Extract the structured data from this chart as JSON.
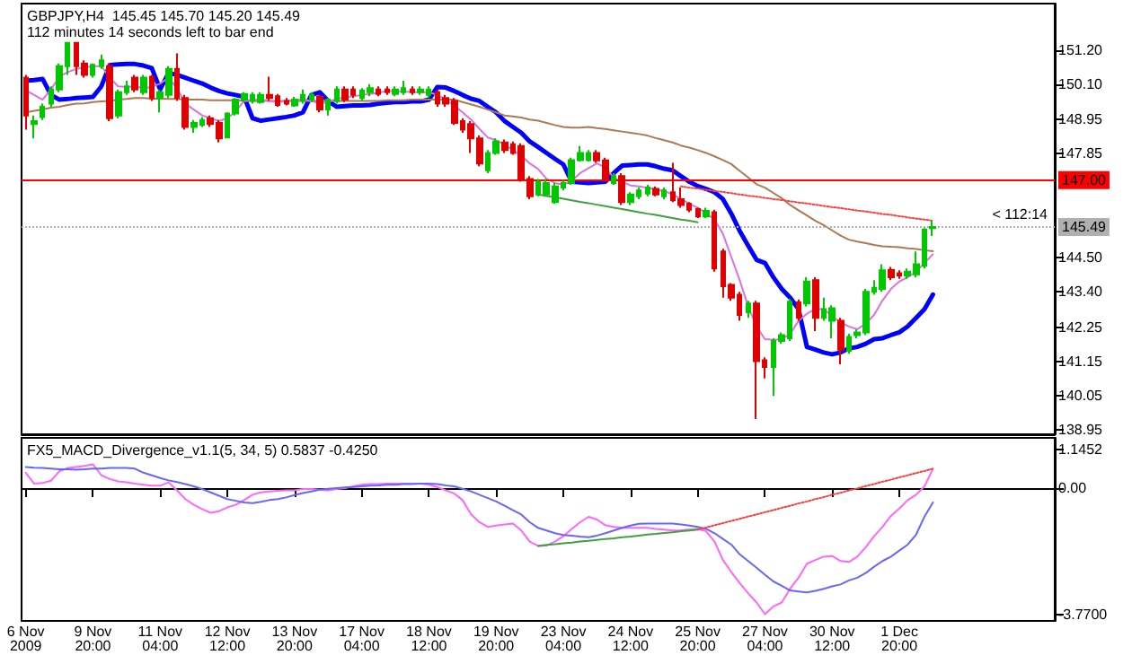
{
  "chart_data": [
    {
      "type": "candlestick",
      "title": "GBPJPY,H4  145.45 145.70 145.20 145.49",
      "subtitle": "112 minutes 14 seconds left to bar end",
      "categories": [
        null,
        null,
        null,
        null,
        null,
        null,
        null,
        null,
        null,
        null,
        null,
        null,
        null,
        null,
        null,
        null,
        null,
        null,
        null,
        null,
        null,
        null,
        null,
        null,
        null,
        null,
        null,
        null,
        null,
        null,
        null,
        null,
        null,
        null,
        null,
        null,
        null,
        null,
        null,
        null,
        null,
        null,
        null,
        null,
        null,
        null,
        null,
        null,
        null,
        null,
        null,
        null,
        null,
        null,
        null,
        null,
        null,
        null,
        null,
        null,
        null,
        null,
        null,
        null,
        null,
        null,
        null,
        null,
        null,
        null,
        null,
        null,
        null,
        null,
        null,
        null,
        null,
        null,
        null,
        null,
        null,
        null,
        null,
        null,
        null,
        null,
        null,
        null,
        null,
        null,
        null,
        null,
        null,
        null,
        null,
        null,
        null,
        null,
        null,
        null,
        null,
        null,
        null,
        null,
        null,
        null,
        null,
        null,
        null
      ],
      "ohlc": [
        [
          150.31,
          150.4,
          148.63,
          149.09
        ],
        [
          148.81,
          149.09,
          148.35,
          148.91
        ],
        [
          149.04,
          149.47,
          148.94,
          149.37
        ],
        [
          149.47,
          150.03,
          149.37,
          149.93
        ],
        [
          149.93,
          150.77,
          149.84,
          150.68
        ],
        [
          150.68,
          151.43,
          150.4,
          151.43
        ],
        [
          151.43,
          151.43,
          150.4,
          150.68
        ],
        [
          150.77,
          150.87,
          150.31,
          150.4
        ],
        [
          150.4,
          150.77,
          150.31,
          150.72
        ],
        [
          150.68,
          151.05,
          150.59,
          150.87
        ],
        [
          150.68,
          150.77,
          148.91,
          149.0
        ],
        [
          149.09,
          149.93,
          149.0,
          149.84
        ],
        [
          149.84,
          150.21,
          149.75,
          150.03
        ],
        [
          150.31,
          150.4,
          149.84,
          149.93
        ],
        [
          149.84,
          150.4,
          149.75,
          150.31
        ],
        [
          150.34,
          150.4,
          149.56,
          149.65
        ],
        [
          149.65,
          149.93,
          149.19,
          149.84
        ],
        [
          149.75,
          150.68,
          149.65,
          150.59
        ],
        [
          150.59,
          151.09,
          149.56,
          149.65
        ],
        [
          149.65,
          149.75,
          148.63,
          148.72
        ],
        [
          148.72,
          148.94,
          148.53,
          148.85
        ],
        [
          148.78,
          149.04,
          148.72,
          148.94
        ],
        [
          149.0,
          149.09,
          148.72,
          148.81
        ],
        [
          148.85,
          148.94,
          148.22,
          148.35
        ],
        [
          148.38,
          149.19,
          148.35,
          149.15
        ],
        [
          149.15,
          149.65,
          149.09,
          149.6
        ],
        [
          149.6,
          149.84,
          149.52,
          149.78
        ],
        [
          149.56,
          149.84,
          149.47,
          149.75
        ],
        [
          149.52,
          149.84,
          149.47,
          149.75
        ],
        [
          149.75,
          150.34,
          149.56,
          149.65
        ],
        [
          149.71,
          149.78,
          149.37,
          149.43
        ],
        [
          149.56,
          149.65,
          149.41,
          149.47
        ],
        [
          149.41,
          149.69,
          149.37,
          149.6
        ],
        [
          149.56,
          149.93,
          149.47,
          149.75
        ],
        [
          149.6,
          149.84,
          149.52,
          149.75
        ],
        [
          149.69,
          149.78,
          149.19,
          149.28
        ],
        [
          149.28,
          149.65,
          149.09,
          149.6
        ],
        [
          149.56,
          150.03,
          149.47,
          149.93
        ],
        [
          149.93,
          150.03,
          149.52,
          149.6
        ],
        [
          149.93,
          150.03,
          149.65,
          149.75
        ],
        [
          149.65,
          149.97,
          149.56,
          149.9
        ],
        [
          149.84,
          150.1,
          149.71,
          149.97
        ],
        [
          149.93,
          150.03,
          149.71,
          149.78
        ],
        [
          149.93,
          150.03,
          149.75,
          149.84
        ],
        [
          149.78,
          150.03,
          149.71,
          149.93
        ],
        [
          149.84,
          150.21,
          149.75,
          149.97
        ],
        [
          149.93,
          150.03,
          149.75,
          149.84
        ],
        [
          149.84,
          150.03,
          149.75,
          149.93
        ],
        [
          149.75,
          150.03,
          149.65,
          149.93
        ],
        [
          149.84,
          149.93,
          149.37,
          149.47
        ],
        [
          149.65,
          149.75,
          149.37,
          149.47
        ],
        [
          149.56,
          149.65,
          148.78,
          148.85
        ],
        [
          148.91,
          149.0,
          148.53,
          148.63
        ],
        [
          148.81,
          148.91,
          147.88,
          148.35
        ],
        [
          148.35,
          148.44,
          147.45,
          147.54
        ],
        [
          147.32,
          147.97,
          147.23,
          147.88
        ],
        [
          147.88,
          148.35,
          147.82,
          148.25
        ],
        [
          148.22,
          148.31,
          147.88,
          147.97
        ],
        [
          148.16,
          148.25,
          147.82,
          147.88
        ],
        [
          148.1,
          148.19,
          146.95,
          147.04
        ],
        [
          147.04,
          147.13,
          146.39,
          146.48
        ],
        [
          146.54,
          147.04,
          146.48,
          146.95
        ],
        [
          146.54,
          147.04,
          146.48,
          146.91
        ],
        [
          146.29,
          146.91,
          146.24,
          146.8
        ],
        [
          146.76,
          147.0,
          146.67,
          146.91
        ],
        [
          146.91,
          147.73,
          146.85,
          147.65
        ],
        [
          147.65,
          148.1,
          147.6,
          147.88
        ],
        [
          147.65,
          147.97,
          147.6,
          147.88
        ],
        [
          147.88,
          147.97,
          147.56,
          147.64
        ],
        [
          147.64,
          147.73,
          146.95,
          147.04
        ],
        [
          146.91,
          147.23,
          146.85,
          147.13
        ],
        [
          147.13,
          147.23,
          146.2,
          146.29
        ],
        [
          146.29,
          146.61,
          146.2,
          146.54
        ],
        [
          146.48,
          146.76,
          146.39,
          146.67
        ],
        [
          146.57,
          146.85,
          146.48,
          146.76
        ],
        [
          146.72,
          146.8,
          146.48,
          146.54
        ],
        [
          146.48,
          146.76,
          146.39,
          146.67
        ],
        [
          146.61,
          147.56,
          146.29,
          146.35
        ],
        [
          146.39,
          146.76,
          146.11,
          146.2
        ],
        [
          146.24,
          146.29,
          145.97,
          146.05
        ],
        [
          146.07,
          146.11,
          145.78,
          145.83
        ],
        [
          145.83,
          146.11,
          145.78,
          146.01
        ],
        [
          145.97,
          146.05,
          144.05,
          144.15
        ],
        [
          144.7,
          144.79,
          143.21,
          143.58
        ],
        [
          143.62,
          143.68,
          143.11,
          143.21
        ],
        [
          143.3,
          143.4,
          142.46,
          142.65
        ],
        [
          142.74,
          143.11,
          142.56,
          143.02
        ],
        [
          143.02,
          143.11,
          139.29,
          141.16
        ],
        [
          141.19,
          141.28,
          140.6,
          140.97
        ],
        [
          140.97,
          141.9,
          140.04,
          141.81
        ],
        [
          141.81,
          142.09,
          141.72,
          142.0
        ],
        [
          141.9,
          143.17,
          141.81,
          143.08
        ],
        [
          143.06,
          143.15,
          142.46,
          142.56
        ],
        [
          143.02,
          143.87,
          142.93,
          143.73
        ],
        [
          143.77,
          143.87,
          142.13,
          142.56
        ],
        [
          142.56,
          143.21,
          142.46,
          142.84
        ],
        [
          142.46,
          142.96,
          141.9,
          142.87
        ],
        [
          142.46,
          142.56,
          141.06,
          141.53
        ],
        [
          141.49,
          142.04,
          141.4,
          141.94
        ],
        [
          142.0,
          142.18,
          141.9,
          142.09
        ],
        [
          142.09,
          143.49,
          142.0,
          143.4
        ],
        [
          143.4,
          143.77,
          143.3,
          143.53
        ],
        [
          143.49,
          144.29,
          143.4,
          144.09
        ],
        [
          144.11,
          144.2,
          143.77,
          143.87
        ],
        [
          144.0,
          144.09,
          143.82,
          143.92
        ],
        [
          143.92,
          144.15,
          143.82,
          144.05
        ],
        [
          143.96,
          144.7,
          143.87,
          144.29
        ],
        [
          144.24,
          145.45,
          144.15,
          145.41
        ],
        [
          145.45,
          145.7,
          145.2,
          145.49
        ]
      ],
      "colors": [
        "#e00000",
        "#00c800",
        "#00c800",
        "#00c800",
        "#00c800",
        "#00c800",
        "#e00000",
        "#e00000",
        "#00c800",
        "#00c800",
        "#e00000",
        "#00c800",
        "#00c800",
        "#e00000",
        "#00c800",
        "#e00000",
        "#00c800",
        "#00c800",
        "#e00000",
        "#e00000",
        "#00c800",
        "#00c800",
        "#e00000",
        "#e00000",
        "#00c800",
        "#00c800",
        "#00c800",
        "#00c800",
        "#00c800",
        "#e00000",
        "#e00000",
        "#e00000",
        "#00c800",
        "#00c800",
        "#00c800",
        "#e00000",
        "#00c800",
        "#00c800",
        "#e00000",
        "#e00000",
        "#00c800",
        "#00c800",
        "#e00000",
        "#e00000",
        "#00c800",
        "#00c800",
        "#e00000",
        "#00c800",
        "#00c800",
        "#e00000",
        "#e00000",
        "#e00000",
        "#e00000",
        "#e00000",
        "#e00000",
        "#00c800",
        "#00c800",
        "#e00000",
        "#e00000",
        "#e00000",
        "#e00000",
        "#00c800",
        "#00c800",
        "#00c800",
        "#00c800",
        "#00c800",
        "#00c800",
        "#00c800",
        "#e00000",
        "#e00000",
        "#00c800",
        "#e00000",
        "#00c800",
        "#00c800",
        "#00c800",
        "#e00000",
        "#00c800",
        "#e00000",
        "#e00000",
        "#e00000",
        "#e00000",
        "#00c800",
        "#e00000",
        "#e00000",
        "#e00000",
        "#e00000",
        "#00c800",
        "#e00000",
        "#e00000",
        "#00c800",
        "#00c800",
        "#00c800",
        "#e00000",
        "#00c800",
        "#e00000",
        "#00c800",
        "#00c800",
        "#e00000",
        "#00c800",
        "#00c800",
        "#00c800",
        "#00c800",
        "#00c800",
        "#e00000",
        "#e00000",
        "#00c800",
        "#00c800",
        "#00c800",
        "#00c800"
      ],
      "series": [
        {
          "type": "line",
          "color": "#0000ff",
          "values": [
            150.21,
            150.23,
            150.27,
            149.75,
            149.6,
            149.62,
            149.65,
            149.67,
            149.69,
            150.03,
            150.72,
            150.74,
            150.75,
            150.75,
            150.7,
            150.62,
            149.93,
            150.46,
            150.4,
            150.31,
            150.21,
            150.12,
            149.99,
            149.88,
            149.8,
            149.75,
            149.69,
            149.0,
            148.92,
            148.96,
            149.0,
            149.04,
            149.09,
            149.19,
            149.75,
            149.84,
            149.56,
            149.37,
            149.39,
            149.41,
            149.41,
            149.43,
            149.47,
            149.5,
            149.52,
            149.52,
            149.54,
            149.54,
            149.6,
            150.01,
            149.99,
            149.88,
            149.75,
            149.63,
            149.56,
            149.37,
            149.19,
            148.91,
            148.72,
            148.53,
            148.25,
            148.07,
            147.88,
            147.69,
            147.51,
            146.95,
            146.93,
            146.91,
            146.93,
            146.95,
            147.23,
            147.47,
            147.49,
            147.51,
            147.51,
            147.45,
            147.37,
            147.32,
            147.13,
            146.95,
            146.81,
            146.72,
            146.61,
            146.39,
            145.92,
            145.36,
            144.89,
            144.43,
            144.33,
            143.87,
            143.49,
            143.21,
            142.84,
            141.62,
            141.53,
            141.44,
            141.38,
            141.44,
            141.57,
            141.62,
            141.72,
            141.87,
            141.9,
            142.0,
            142.09,
            142.28,
            142.56,
            142.84,
            143.31
          ]
        },
        {
          "type": "line",
          "color": "#b07850",
          "values": [
            149.19,
            149.24,
            149.28,
            149.34,
            149.37,
            149.43,
            149.47,
            149.48,
            149.52,
            149.54,
            149.56,
            149.6,
            149.62,
            149.65,
            149.65,
            149.63,
            149.63,
            149.62,
            149.62,
            149.6,
            149.6,
            149.6,
            149.58,
            149.58,
            149.58,
            149.58,
            149.56,
            149.56,
            149.56,
            149.56,
            149.56,
            149.56,
            149.56,
            149.56,
            149.56,
            149.56,
            149.56,
            149.56,
            149.56,
            149.56,
            149.56,
            149.56,
            149.56,
            149.58,
            149.58,
            149.58,
            149.6,
            149.6,
            149.6,
            149.6,
            149.6,
            149.6,
            149.52,
            149.45,
            149.37,
            149.28,
            149.19,
            149.09,
            149.06,
            149.02,
            148.96,
            148.92,
            148.85,
            148.78,
            148.72,
            148.7,
            148.7,
            148.72,
            148.68,
            148.65,
            148.61,
            148.57,
            148.53,
            148.49,
            148.44,
            148.36,
            148.29,
            148.22,
            148.12,
            148.05,
            147.97,
            147.88,
            147.77,
            147.65,
            147.52,
            147.3,
            147.09,
            146.87,
            146.76,
            146.59,
            146.42,
            146.2,
            146.03,
            145.86,
            145.69,
            145.55,
            145.38,
            145.21,
            145.08,
            145.02,
            144.97,
            144.91,
            144.87,
            144.85,
            144.84,
            144.8,
            144.78,
            144.74,
            144.71
          ]
        },
        {
          "type": "line",
          "color": "#e070e0",
          "values": [
            149.9,
            149.75,
            149.6,
            149.93,
            150.34,
            150.49,
            150.59,
            150.64,
            150.68,
            150.68,
            150.31,
            150.03,
            150.01,
            150.03,
            149.97,
            150.01,
            150.12,
            150.31,
            149.97,
            149.47,
            149.28,
            149.09,
            149.0,
            148.91,
            149.0,
            149.22,
            149.56,
            149.6,
            149.6,
            149.56,
            149.52,
            149.56,
            149.58,
            149.6,
            149.56,
            149.48,
            149.52,
            149.63,
            149.67,
            149.71,
            149.75,
            149.78,
            149.82,
            149.88,
            149.88,
            149.86,
            149.84,
            149.84,
            149.84,
            149.75,
            149.6,
            149.41,
            149.19,
            148.96,
            148.66,
            148.38,
            148.29,
            148.16,
            147.97,
            147.79,
            147.54,
            147.36,
            147.04,
            146.91,
            146.85,
            146.98,
            147.23,
            147.39,
            147.54,
            147.41,
            147.08,
            146.95,
            146.83,
            146.8,
            146.76,
            146.7,
            146.65,
            146.54,
            146.39,
            146.24,
            146.11,
            145.94,
            145.73,
            145.27,
            144.52,
            143.77,
            142.93,
            142.28,
            141.87,
            141.85,
            141.87,
            142.04,
            142.46,
            142.69,
            142.84,
            142.84,
            142.61,
            142.41,
            142.28,
            142.19,
            142.37,
            142.65,
            143.12,
            143.49,
            143.73,
            143.87,
            144.05,
            144.33,
            144.61
          ]
        },
        {
          "type": "line",
          "color": "#40a040",
          "values": [
            null,
            null,
            null,
            null,
            null,
            null,
            null,
            null,
            null,
            null,
            null,
            null,
            null,
            null,
            null,
            null,
            null,
            null,
            null,
            null,
            null,
            null,
            null,
            null,
            null,
            null,
            null,
            null,
            null,
            null,
            null,
            null,
            null,
            null,
            null,
            null,
            null,
            null,
            null,
            null,
            null,
            null,
            null,
            null,
            null,
            null,
            null,
            null,
            null,
            null,
            null,
            null,
            null,
            null,
            null,
            null,
            null,
            null,
            null,
            null,
            null,
            146.54,
            146.49,
            146.45,
            146.4,
            146.35,
            146.3,
            146.26,
            146.21,
            146.16,
            146.11,
            146.07,
            146.02,
            145.97,
            145.92,
            145.88,
            145.83,
            145.78,
            145.73,
            145.69,
            145.64,
            null,
            null,
            null,
            null,
            null,
            null,
            null,
            null,
            null,
            null,
            null,
            null,
            null,
            null,
            null,
            null,
            null,
            null,
            null,
            null,
            null,
            null,
            null,
            null,
            null,
            null,
            null,
            null
          ]
        },
        {
          "type": "line",
          "color": "#ff4040",
          "line_style": "dotted",
          "values": [
            null,
            null,
            null,
            null,
            null,
            null,
            null,
            null,
            null,
            null,
            null,
            null,
            null,
            null,
            null,
            null,
            null,
            null,
            null,
            null,
            null,
            null,
            null,
            null,
            null,
            null,
            null,
            null,
            null,
            null,
            null,
            null,
            null,
            null,
            null,
            null,
            null,
            null,
            null,
            null,
            null,
            null,
            null,
            null,
            null,
            null,
            null,
            null,
            null,
            null,
            null,
            null,
            null,
            null,
            null,
            null,
            null,
            null,
            null,
            null,
            null,
            null,
            null,
            null,
            null,
            null,
            null,
            null,
            null,
            null,
            null,
            null,
            null,
            null,
            null,
            null,
            null,
            null,
            146.8,
            146.76,
            146.73,
            146.69,
            146.65,
            146.62,
            146.58,
            146.54,
            146.5,
            146.47,
            146.43,
            146.39,
            146.36,
            146.32,
            146.28,
            146.25,
            146.21,
            146.17,
            146.13,
            146.1,
            146.06,
            146.02,
            145.99,
            145.95,
            145.91,
            145.88,
            145.84,
            145.8,
            145.76,
            145.73,
            145.69
          ]
        }
      ],
      "marker": "none",
      "ylim": [
        138.8,
        152.7
      ],
      "yticks": [
        {
          "value": 151.2,
          "label": "151.20"
        },
        {
          "value": 150.1,
          "label": "150.10"
        },
        {
          "value": 148.95,
          "label": "148.95"
        },
        {
          "value": 147.85,
          "label": "147.85"
        },
        {
          "value": 144.5,
          "label": "144.50"
        },
        {
          "value": 143.4,
          "label": "143.40"
        },
        {
          "value": 142.25,
          "label": "142.25"
        },
        {
          "value": 141.15,
          "label": "141.15"
        },
        {
          "value": 140.05,
          "label": "140.05"
        },
        {
          "value": 138.95,
          "label": "138.95"
        }
      ],
      "ref_lines": [
        {
          "axis": "y",
          "value": 147.0,
          "label": "147.00",
          "color": "#ff0000"
        },
        {
          "axis": "y",
          "value": 145.49,
          "label": "145.49",
          "color": "#b0b0b0",
          "line_style": "dotted"
        }
      ],
      "annotations": [
        {
          "text": "< 112:14",
          "y": 145.49
        }
      ],
      "tick_labels": "y"
    },
    {
      "type": "line",
      "title": "FX5_MACD_Divergence_v1.1(5, 34, 5) 0.5837 -0.4250",
      "categories": [
        "6 Nov 2009",
        null,
        null,
        null,
        null,
        null,
        null,
        null,
        "9 Nov 20:00",
        null,
        null,
        null,
        null,
        null,
        null,
        null,
        "11 Nov 04:00",
        null,
        null,
        null,
        null,
        null,
        null,
        null,
        "12 Nov 12:00",
        null,
        null,
        null,
        null,
        null,
        null,
        null,
        "13 Nov 20:00",
        null,
        null,
        null,
        null,
        null,
        null,
        null,
        "17 Nov 04:00",
        null,
        null,
        null,
        null,
        null,
        null,
        null,
        "18 Nov 12:00",
        null,
        null,
        null,
        null,
        null,
        null,
        null,
        "19 Nov 20:00",
        null,
        null,
        null,
        null,
        null,
        null,
        null,
        "23 Nov 04:00",
        null,
        null,
        null,
        null,
        null,
        null,
        null,
        "24 Nov 12:00",
        null,
        null,
        null,
        null,
        null,
        null,
        null,
        "25 Nov 20:00",
        null,
        null,
        null,
        null,
        null,
        null,
        null,
        "27 Nov 04:00",
        null,
        null,
        null,
        null,
        null,
        null,
        null,
        "30 Nov 12:00",
        null,
        null,
        null,
        null,
        null,
        null,
        null,
        "1 Dec 20:00",
        null,
        null,
        null,
        null
      ],
      "series": [
        {
          "color": "#ff66ff",
          "values": [
            0.46,
            0.13,
            0.15,
            0.22,
            0.5,
            0.6,
            0.63,
            0.66,
            0.71,
            0.38,
            0.27,
            0.2,
            0.17,
            0.13,
            0.1,
            0.07,
            0.07,
            0.17,
            -0.07,
            -0.33,
            -0.5,
            -0.63,
            -0.74,
            -0.69,
            -0.58,
            -0.5,
            -0.36,
            -0.2,
            -0.13,
            -0.1,
            -0.08,
            -0.07,
            -0.07,
            -0.03,
            -0.03,
            -0.05,
            -0.07,
            -0.03,
            0.0,
            0.05,
            0.1,
            0.12,
            0.12,
            0.13,
            0.13,
            0.13,
            0.13,
            0.13,
            0.1,
            0.03,
            -0.07,
            -0.16,
            -0.36,
            -0.78,
            -1.02,
            -1.16,
            -1.12,
            -1.09,
            -1.06,
            -1.27,
            -1.6,
            -1.73,
            -1.72,
            -1.6,
            -1.44,
            -1.22,
            -1.02,
            -0.86,
            -0.94,
            -1.11,
            -1.16,
            -1.19,
            -1.19,
            -1.19,
            -1.19,
            -1.22,
            -1.24,
            -1.27,
            -1.26,
            -1.24,
            -1.22,
            -1.29,
            -1.6,
            -2.15,
            -2.51,
            -2.84,
            -3.14,
            -3.42,
            -3.77,
            -3.54,
            -3.42,
            -3.01,
            -2.68,
            -2.26,
            -2.15,
            -2.05,
            -2.03,
            -2.18,
            -2.21,
            -2.05,
            -1.77,
            -1.44,
            -1.16,
            -0.83,
            -0.61,
            -0.36,
            -0.2,
            0.05,
            0.58
          ]
        },
        {
          "color": "#6666ff",
          "values": [
            0.63,
            0.61,
            0.6,
            0.58,
            0.56,
            0.56,
            0.55,
            0.56,
            0.58,
            0.58,
            0.6,
            0.6,
            0.6,
            0.58,
            0.46,
            0.38,
            0.3,
            0.23,
            0.18,
            0.12,
            0.05,
            -0.03,
            -0.13,
            -0.23,
            -0.33,
            -0.38,
            -0.43,
            -0.45,
            -0.41,
            -0.36,
            -0.33,
            -0.28,
            -0.21,
            -0.15,
            -0.1,
            -0.05,
            -0.02,
            0.0,
            0.02,
            0.03,
            0.05,
            0.07,
            0.08,
            0.1,
            0.1,
            0.12,
            0.12,
            0.13,
            0.13,
            0.12,
            0.08,
            0.05,
            -0.02,
            -0.1,
            -0.2,
            -0.3,
            -0.4,
            -0.53,
            -0.66,
            -0.79,
            -1.02,
            -1.19,
            -1.27,
            -1.35,
            -1.4,
            -1.42,
            -1.45,
            -1.47,
            -1.42,
            -1.35,
            -1.27,
            -1.19,
            -1.12,
            -1.07,
            -1.06,
            -1.06,
            -1.06,
            -1.06,
            -1.09,
            -1.12,
            -1.16,
            -1.22,
            -1.35,
            -1.52,
            -1.69,
            -1.98,
            -2.18,
            -2.38,
            -2.59,
            -2.79,
            -2.92,
            -3.06,
            -3.09,
            -3.12,
            -3.07,
            -3.01,
            -2.94,
            -2.88,
            -2.76,
            -2.68,
            -2.54,
            -2.35,
            -2.18,
            -2.05,
            -1.87,
            -1.69,
            -1.39,
            -0.85,
            -0.43
          ]
        },
        {
          "color": "#40a040",
          "values": [
            null,
            null,
            null,
            null,
            null,
            null,
            null,
            null,
            null,
            null,
            null,
            null,
            null,
            null,
            null,
            null,
            null,
            null,
            null,
            null,
            null,
            null,
            null,
            null,
            null,
            null,
            null,
            null,
            null,
            null,
            null,
            null,
            null,
            null,
            null,
            null,
            null,
            null,
            null,
            null,
            null,
            null,
            null,
            null,
            null,
            null,
            null,
            null,
            null,
            null,
            null,
            null,
            null,
            null,
            null,
            null,
            null,
            null,
            null,
            null,
            null,
            -1.73,
            -1.7,
            -1.68,
            -1.65,
            -1.63,
            -1.6,
            -1.58,
            -1.55,
            -1.52,
            -1.5,
            -1.47,
            -1.45,
            -1.42,
            -1.39,
            -1.37,
            -1.34,
            -1.32,
            -1.29,
            -1.27,
            -1.24,
            null,
            null,
            null,
            null,
            null,
            null,
            null,
            null,
            null,
            null,
            null,
            null,
            null,
            null,
            null,
            null,
            null,
            null,
            null,
            null,
            null,
            null,
            null,
            null,
            null,
            null,
            null,
            null
          ]
        },
        {
          "color": "#ff4040",
          "line_style": "dotted",
          "values": [
            null,
            null,
            null,
            null,
            null,
            null,
            null,
            null,
            null,
            null,
            null,
            null,
            null,
            null,
            null,
            null,
            null,
            null,
            null,
            null,
            null,
            null,
            null,
            null,
            null,
            null,
            null,
            null,
            null,
            null,
            null,
            null,
            null,
            null,
            null,
            null,
            null,
            null,
            null,
            null,
            null,
            null,
            null,
            null,
            null,
            null,
            null,
            null,
            null,
            null,
            null,
            null,
            null,
            null,
            null,
            null,
            null,
            null,
            null,
            null,
            null,
            null,
            null,
            null,
            null,
            null,
            null,
            null,
            null,
            null,
            null,
            null,
            null,
            null,
            null,
            null,
            null,
            null,
            null,
            null,
            -1.24,
            -1.18,
            -1.11,
            -1.05,
            -0.98,
            -0.92,
            -0.85,
            -0.79,
            -0.72,
            -0.66,
            -0.59,
            -0.53,
            -0.46,
            -0.4,
            -0.33,
            -0.27,
            -0.2,
            -0.14,
            -0.07,
            -0.01,
            0.06,
            0.12,
            0.19,
            0.25,
            0.32,
            0.38,
            0.45,
            0.51,
            0.58
          ]
        }
      ],
      "marker": "none",
      "ylim": [
        -3.97,
        1.5
      ],
      "yticks": [
        {
          "value": 1.1452,
          "label": "1.1452"
        },
        {
          "value": 0,
          "label": "0.00"
        },
        {
          "value": -3.77,
          "label": "-3.7700"
        }
      ]
    }
  ]
}
